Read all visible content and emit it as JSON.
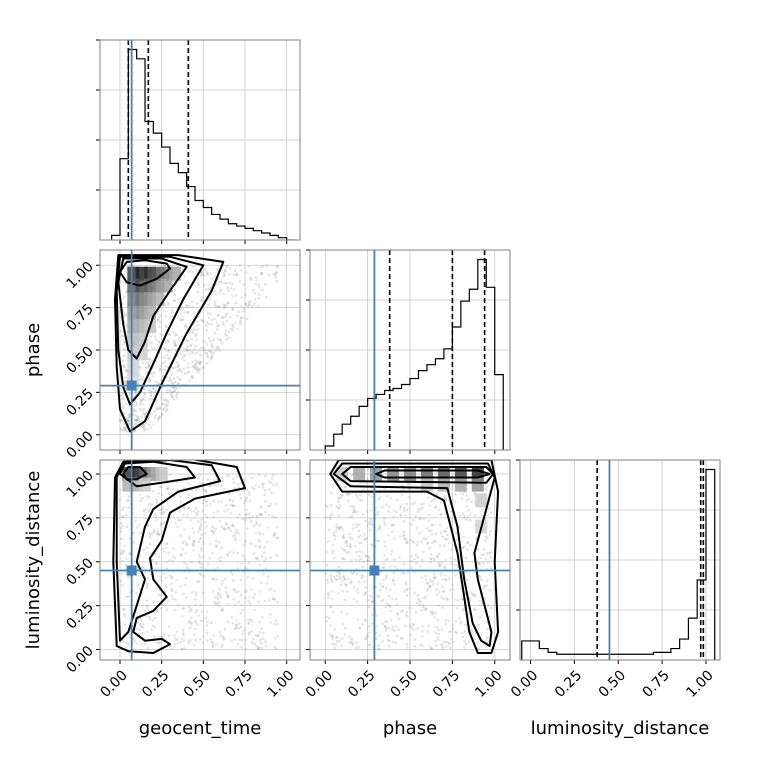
{
  "chart_data": {
    "type": "corner",
    "parameters": [
      {
        "name": "geocent_time",
        "label": "geocent_time",
        "range": [
          -0.12,
          1.08
        ],
        "ticks": [
          0.0,
          0.25,
          0.5,
          0.75,
          1.0
        ],
        "tick_labels": [
          "0.00",
          "0.25",
          "0.50",
          "0.75",
          "1.00"
        ]
      },
      {
        "name": "phase",
        "label": "phase",
        "range": [
          -0.09,
          1.09
        ],
        "ticks": [
          0.0,
          0.25,
          0.5,
          0.75,
          1.0
        ],
        "tick_labels": [
          "0.00",
          "0.25",
          "0.50",
          "0.75",
          "1.00"
        ]
      },
      {
        "name": "luminosity_distance",
        "label": "luminosity_distance",
        "range": [
          -0.06,
          1.08
        ],
        "ticks": [
          0.0,
          0.25,
          0.5,
          0.75,
          1.0
        ],
        "tick_labels": [
          "0.00",
          "0.25",
          "0.50",
          "0.75",
          "1.00"
        ]
      }
    ],
    "truths": [
      0.07,
      0.29,
      0.45
    ],
    "truth_color": "#4682b4",
    "quantiles": [
      [
        0.05,
        0.17,
        0.41
      ],
      [
        0.38,
        0.75,
        0.94
      ],
      [
        0.38,
        0.97,
        0.985
      ]
    ],
    "histograms": [
      {
        "edges": [
          -0.05,
          0.0,
          0.05,
          0.1,
          0.15,
          0.2,
          0.25,
          0.3,
          0.35,
          0.4,
          0.45,
          0.5,
          0.55,
          0.6,
          0.65,
          0.7,
          0.75,
          0.8,
          0.85,
          0.9,
          0.95,
          1.0,
          1.05
        ],
        "counts": [
          2,
          35,
          82,
          78,
          51,
          46,
          40,
          33,
          29,
          23,
          17,
          14,
          11,
          9,
          7,
          6,
          5,
          4,
          3,
          2,
          1,
          0
        ]
      },
      {
        "edges": [
          0.0,
          0.05,
          0.1,
          0.15,
          0.2,
          0.25,
          0.3,
          0.35,
          0.4,
          0.45,
          0.5,
          0.55,
          0.6,
          0.65,
          0.7,
          0.75,
          0.8,
          0.85,
          0.9,
          0.95,
          1.0,
          1.05
        ],
        "counts": [
          2,
          8,
          13,
          17,
          22,
          26,
          28,
          30,
          31,
          33,
          36,
          40,
          43,
          46,
          51,
          62,
          75,
          81,
          96,
          82,
          38
        ]
      },
      {
        "edges": [
          -0.05,
          0.0,
          0.05,
          0.1,
          0.15,
          0.2,
          0.25,
          0.3,
          0.35,
          0.4,
          0.45,
          0.5,
          0.55,
          0.6,
          0.65,
          0.7,
          0.75,
          0.8,
          0.85,
          0.9,
          0.95,
          1.0,
          1.05
        ],
        "counts": [
          10,
          10,
          6,
          4,
          3,
          3,
          3,
          3,
          3,
          3,
          3,
          3,
          3,
          3,
          3,
          4,
          4,
          6,
          11,
          22,
          42,
          100
        ]
      }
    ],
    "density_cells": [
      {
        "pair": [
          0,
          1
        ],
        "cells": [
          [
            0.08,
            0.95,
            0.9
          ],
          [
            0.13,
            0.95,
            1.0
          ],
          [
            0.18,
            0.95,
            0.95
          ],
          [
            0.23,
            0.95,
            0.75
          ],
          [
            0.28,
            0.95,
            0.55
          ],
          [
            0.33,
            0.95,
            0.35
          ],
          [
            0.08,
            0.88,
            0.75
          ],
          [
            0.13,
            0.88,
            0.8
          ],
          [
            0.18,
            0.88,
            0.7
          ],
          [
            0.23,
            0.88,
            0.5
          ],
          [
            0.28,
            0.88,
            0.35
          ],
          [
            0.08,
            0.8,
            0.6
          ],
          [
            0.13,
            0.8,
            0.6
          ],
          [
            0.18,
            0.8,
            0.45
          ],
          [
            0.23,
            0.8,
            0.3
          ],
          [
            0.08,
            0.72,
            0.45
          ],
          [
            0.13,
            0.72,
            0.45
          ],
          [
            0.18,
            0.72,
            0.3
          ],
          [
            0.08,
            0.64,
            0.35
          ],
          [
            0.13,
            0.64,
            0.3
          ],
          [
            0.18,
            0.64,
            0.2
          ],
          [
            0.08,
            0.56,
            0.25
          ],
          [
            0.13,
            0.56,
            0.2
          ],
          [
            0.08,
            0.48,
            0.18
          ],
          [
            0.13,
            0.48,
            0.14
          ],
          [
            0.08,
            0.4,
            0.12
          ],
          [
            0.08,
            0.32,
            0.1
          ]
        ]
      },
      {
        "pair": [
          0,
          2
        ],
        "cells": [
          [
            0.05,
            1.0,
            0.9
          ],
          [
            0.1,
            1.0,
            1.0
          ],
          [
            0.15,
            1.0,
            0.7
          ],
          [
            0.2,
            1.0,
            0.4
          ],
          [
            0.25,
            1.0,
            0.2
          ],
          [
            0.05,
            0.94,
            0.3
          ],
          [
            0.1,
            0.94,
            0.3
          ],
          [
            0.15,
            0.94,
            0.15
          ]
        ]
      },
      {
        "pair": [
          1,
          2
        ],
        "cells": [
          [
            0.1,
            1.0,
            0.2
          ],
          [
            0.2,
            1.0,
            0.35
          ],
          [
            0.3,
            1.0,
            0.45
          ],
          [
            0.4,
            1.0,
            0.5
          ],
          [
            0.5,
            1.0,
            0.55
          ],
          [
            0.6,
            1.0,
            0.65
          ],
          [
            0.7,
            1.0,
            0.75
          ],
          [
            0.8,
            1.0,
            0.85
          ],
          [
            0.9,
            1.0,
            1.0
          ],
          [
            0.6,
            0.94,
            0.2
          ],
          [
            0.7,
            0.94,
            0.3
          ],
          [
            0.8,
            0.94,
            0.35
          ],
          [
            0.9,
            0.94,
            0.45
          ],
          [
            0.92,
            0.85,
            0.15
          ],
          [
            0.92,
            0.7,
            0.12
          ]
        ]
      }
    ],
    "contours": [
      {
        "pair": [
          0,
          1
        ],
        "levels": [
          [
            [
              0.0,
              0.96
            ],
            [
              0.04,
              1.02
            ],
            [
              0.15,
              1.03
            ],
            [
              0.28,
              1.01
            ],
            [
              0.3,
              0.98
            ],
            [
              0.22,
              0.92
            ],
            [
              0.12,
              0.88
            ],
            [
              0.04,
              0.9
            ],
            [
              0.0,
              0.96
            ]
          ],
          [
            [
              -0.01,
              0.9
            ],
            [
              0.02,
              1.04
            ],
            [
              0.25,
              1.04
            ],
            [
              0.4,
              0.99
            ],
            [
              0.3,
              0.85
            ],
            [
              0.2,
              0.7
            ],
            [
              0.15,
              0.55
            ],
            [
              0.1,
              0.45
            ],
            [
              0.05,
              0.5
            ],
            [
              0.02,
              0.65
            ],
            [
              -0.01,
              0.9
            ]
          ],
          [
            [
              -0.02,
              0.85
            ],
            [
              0.0,
              1.05
            ],
            [
              0.3,
              1.05
            ],
            [
              0.5,
              1.0
            ],
            [
              0.38,
              0.8
            ],
            [
              0.28,
              0.6
            ],
            [
              0.2,
              0.42
            ],
            [
              0.12,
              0.25
            ],
            [
              0.06,
              0.18
            ],
            [
              0.02,
              0.28
            ],
            [
              -0.01,
              0.5
            ],
            [
              -0.02,
              0.85
            ]
          ],
          [
            [
              -0.03,
              0.8
            ],
            [
              -0.01,
              1.06
            ],
            [
              0.35,
              1.06
            ],
            [
              0.62,
              1.02
            ],
            [
              0.55,
              0.85
            ],
            [
              0.4,
              0.6
            ],
            [
              0.25,
              0.3
            ],
            [
              0.15,
              0.08
            ],
            [
              0.06,
              0.02
            ],
            [
              0.0,
              0.15
            ],
            [
              -0.02,
              0.4
            ],
            [
              -0.03,
              0.8
            ]
          ]
        ]
      },
      {
        "pair": [
          0,
          2
        ],
        "levels": [
          [
            [
              0.02,
              1.0
            ],
            [
              0.05,
              1.04
            ],
            [
              0.12,
              1.04
            ],
            [
              0.16,
              1.0
            ],
            [
              0.1,
              0.97
            ],
            [
              0.04,
              0.97
            ],
            [
              0.02,
              1.0
            ]
          ],
          [
            [
              0.0,
              1.0
            ],
            [
              0.03,
              1.06
            ],
            [
              0.2,
              1.07
            ],
            [
              0.4,
              1.04
            ],
            [
              0.45,
              0.98
            ],
            [
              0.25,
              0.95
            ],
            [
              0.1,
              0.93
            ],
            [
              0.0,
              1.0
            ]
          ],
          [
            [
              -0.02,
              0.98
            ],
            [
              0.02,
              1.06
            ],
            [
              0.3,
              1.08
            ],
            [
              0.55,
              1.05
            ],
            [
              0.6,
              0.96
            ],
            [
              0.35,
              0.9
            ],
            [
              0.2,
              0.8
            ],
            [
              0.15,
              0.7
            ],
            [
              0.1,
              0.5
            ],
            [
              0.15,
              0.4
            ],
            [
              0.1,
              0.25
            ],
            [
              0.05,
              0.1
            ],
            [
              0.0,
              0.05
            ],
            [
              -0.02,
              0.5
            ],
            [
              -0.02,
              0.98
            ]
          ],
          [
            [
              -0.04,
              0.5
            ],
            [
              -0.03,
              0.98
            ],
            [
              0.02,
              1.07
            ],
            [
              0.4,
              1.09
            ],
            [
              0.7,
              1.04
            ],
            [
              0.75,
              0.92
            ],
            [
              0.45,
              0.86
            ],
            [
              0.3,
              0.78
            ],
            [
              0.25,
              0.62
            ],
            [
              0.18,
              0.52
            ],
            [
              0.2,
              0.4
            ],
            [
              0.28,
              0.3
            ],
            [
              0.2,
              0.22
            ],
            [
              0.1,
              0.18
            ],
            [
              0.08,
              0.1
            ],
            [
              0.15,
              0.05
            ],
            [
              0.25,
              0.06
            ],
            [
              0.3,
              0.03
            ],
            [
              0.2,
              -0.02
            ],
            [
              0.05,
              -0.01
            ],
            [
              -0.02,
              0.02
            ],
            [
              -0.04,
              0.5
            ]
          ]
        ]
      },
      {
        "pair": [
          1,
          2
        ],
        "levels": [
          [
            [
              0.3,
              1.0
            ],
            [
              0.35,
              1.02
            ],
            [
              0.9,
              1.02
            ],
            [
              0.97,
              1.0
            ],
            [
              0.9,
              0.98
            ],
            [
              0.35,
              0.98
            ],
            [
              0.3,
              1.0
            ]
          ],
          [
            [
              0.1,
              1.0
            ],
            [
              0.15,
              1.04
            ],
            [
              0.95,
              1.04
            ],
            [
              0.99,
              1.0
            ],
            [
              0.95,
              0.95
            ],
            [
              0.15,
              0.96
            ],
            [
              0.1,
              1.0
            ]
          ],
          [
            [
              0.05,
              1.0
            ],
            [
              0.1,
              1.06
            ],
            [
              0.96,
              1.06
            ],
            [
              1.0,
              0.98
            ],
            [
              0.95,
              0.8
            ],
            [
              0.88,
              0.55
            ],
            [
              0.9,
              0.4
            ],
            [
              0.94,
              0.25
            ],
            [
              0.98,
              0.1
            ],
            [
              0.97,
              0.02
            ],
            [
              0.92,
              0.05
            ],
            [
              0.87,
              0.15
            ],
            [
              0.82,
              0.4
            ],
            [
              0.78,
              0.7
            ],
            [
              0.72,
              0.92
            ],
            [
              0.15,
              0.93
            ],
            [
              0.05,
              1.0
            ]
          ],
          [
            [
              0.03,
              1.0
            ],
            [
              0.08,
              1.08
            ],
            [
              0.98,
              1.08
            ],
            [
              1.02,
              0.9
            ],
            [
              1.0,
              0.5
            ],
            [
              1.02,
              0.1
            ],
            [
              0.98,
              -0.02
            ],
            [
              0.9,
              -0.02
            ],
            [
              0.85,
              0.1
            ],
            [
              0.82,
              0.3
            ],
            [
              0.78,
              0.55
            ],
            [
              0.7,
              0.85
            ],
            [
              0.6,
              0.9
            ],
            [
              0.1,
              0.9
            ],
            [
              0.03,
              1.0
            ]
          ]
        ]
      }
    ],
    "scatter": [
      {
        "pair": [
          0,
          1
        ],
        "cloud": {
          "x_range": [
            0.0,
            0.95
          ],
          "y_range": [
            0.02,
            1.0
          ],
          "n": 900,
          "seed": 11,
          "shape": "triangular-upper"
        }
      },
      {
        "pair": [
          0,
          2
        ],
        "cloud": {
          "x_range": [
            0.0,
            0.95
          ],
          "y_range": [
            0.0,
            1.0
          ],
          "n": 800,
          "seed": 23,
          "shape": "uniform"
        }
      },
      {
        "pair": [
          1,
          2
        ],
        "cloud": {
          "x_range": [
            0.0,
            0.98
          ],
          "y_range": [
            0.0,
            1.0
          ],
          "n": 900,
          "seed": 37,
          "shape": "uniform"
        }
      }
    ]
  }
}
